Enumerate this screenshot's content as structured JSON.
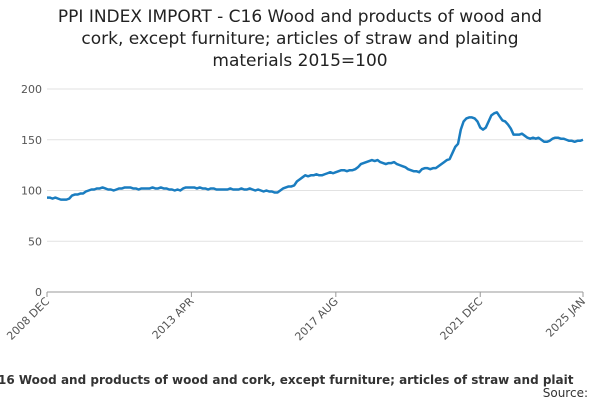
{
  "chart_data": {
    "type": "line",
    "title": [
      "PPI INDEX IMPORT - C16 Wood and products of wood and",
      "cork, except furniture; articles of straw and plaiting",
      "materials 2015=100"
    ],
    "categories": [
      "2008 DEC",
      null,
      null,
      null,
      null,
      null,
      null,
      null,
      null,
      null,
      null,
      null,
      null,
      null,
      null,
      null,
      null,
      null,
      null,
      null,
      null,
      null,
      null,
      null,
      null,
      null,
      null,
      null,
      null,
      null,
      null,
      null,
      null,
      null,
      null,
      null,
      null,
      null,
      null,
      null,
      null,
      null,
      null,
      null,
      null,
      null,
      null,
      null,
      null,
      null,
      null,
      null,
      "2013 APR",
      null,
      null,
      null,
      null,
      null,
      null,
      null,
      null,
      null,
      null,
      null,
      null,
      null,
      null,
      null,
      null,
      null,
      null,
      null,
      null,
      null,
      null,
      null,
      null,
      null,
      null,
      null,
      null,
      null,
      null,
      null,
      null,
      null,
      null,
      null,
      null,
      null,
      null,
      null,
      null,
      null,
      null,
      null,
      null,
      null,
      null,
      null,
      null,
      null,
      null,
      null,
      "2017 AUG",
      null,
      null,
      null,
      null,
      null,
      null,
      null,
      null,
      null,
      null,
      null,
      null,
      null,
      null,
      null,
      null,
      null,
      null,
      null,
      null,
      null,
      null,
      null,
      null,
      null,
      null,
      null,
      null,
      null,
      null,
      null,
      null,
      null,
      null,
      null,
      null,
      null,
      null,
      null,
      null,
      null,
      null,
      null,
      null,
      null,
      null,
      null,
      null,
      null,
      null,
      null,
      "2021 DEC",
      null,
      null,
      null,
      null,
      null,
      null,
      null,
      null,
      null,
      null,
      null,
      null,
      null,
      null,
      null,
      null,
      null,
      null,
      null,
      null,
      null,
      null,
      null,
      null,
      null,
      null,
      null,
      null,
      null,
      null,
      null,
      null,
      null,
      null,
      null,
      null,
      "2025 JAN"
    ],
    "series": [
      {
        "name": "16 Wood and products of wood and cork, except furniture; articles of straw and plait",
        "color": "#1a7dc0",
        "values": [
          93,
          93,
          92,
          93,
          92,
          91,
          91,
          91,
          92,
          95,
          96,
          96,
          97,
          97,
          99,
          100,
          101,
          101,
          102,
          102,
          103,
          102,
          101,
          101,
          100,
          101,
          102,
          102,
          103,
          103,
          103,
          102,
          102,
          101,
          102,
          102,
          102,
          102,
          103,
          102,
          102,
          103,
          102,
          102,
          101,
          101,
          100,
          101,
          100,
          102,
          103,
          103,
          103,
          103,
          102,
          103,
          102,
          102,
          101,
          102,
          102,
          101,
          101,
          101,
          101,
          101,
          102,
          101,
          101,
          101,
          102,
          101,
          101,
          102,
          101,
          100,
          101,
          100,
          99,
          100,
          99,
          99,
          98,
          98,
          100,
          102,
          103,
          104,
          104,
          105,
          109,
          111,
          113,
          115,
          114,
          115,
          115,
          116,
          115,
          115,
          116,
          117,
          118,
          117,
          118,
          119,
          120,
          120,
          119,
          120,
          120,
          121,
          123,
          126,
          127,
          128,
          129,
          130,
          129,
          130,
          128,
          127,
          126,
          127,
          127,
          128,
          126,
          125,
          124,
          123,
          121,
          120,
          119,
          119,
          118,
          121,
          122,
          122,
          121,
          122,
          122,
          124,
          126,
          128,
          130,
          131,
          137,
          143,
          146,
          160,
          168,
          171,
          172,
          172,
          171,
          168,
          162,
          160,
          162,
          168,
          174,
          176,
          177,
          173,
          169,
          168,
          165,
          161,
          155,
          155,
          155,
          156,
          154,
          152,
          151,
          152,
          151,
          152,
          150,
          148,
          148,
          149,
          151,
          152,
          152,
          151,
          151,
          150,
          149,
          149,
          148,
          149,
          149,
          150
        ]
      }
    ],
    "ylim": [
      0,
      200
    ],
    "yticks": [
      0,
      50,
      100,
      150,
      200
    ],
    "grid": true,
    "source": "Source:"
  }
}
